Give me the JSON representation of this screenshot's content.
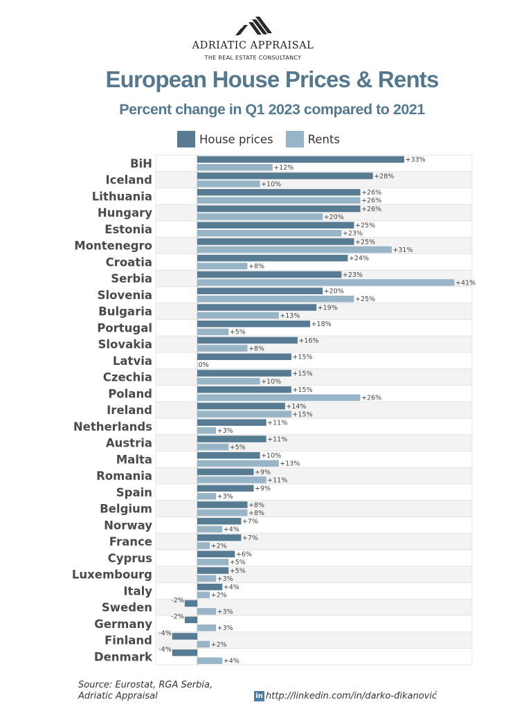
{
  "header": {
    "brand": "ADRIATIC APPRAISAL",
    "tagline": "THE REAL ESTATE CONSULTANCY",
    "logo_icon": "roof-stripes-icon"
  },
  "colors": {
    "title": "#55788f",
    "house_prices": "#567b93",
    "rents": "#97b5c7",
    "row_alt": "#f3f3f3",
    "row": "#ffffff",
    "text": "#444444"
  },
  "chart_data": {
    "type": "bar",
    "orientation": "horizontal",
    "title": "European House Prices & Rents",
    "subtitle": "Percent change in Q1 2023 compared to 2021",
    "xlabel": "",
    "ylabel": "",
    "xlim": [
      -6.6,
      44
    ],
    "grid": false,
    "legend": {
      "position": "top-center",
      "entries": [
        "House prices",
        "Rents"
      ]
    },
    "categories": [
      "BiH",
      "Iceland",
      "Lithuania",
      "Hungary",
      "Estonia",
      "Montenegro",
      "Croatia",
      "Serbia",
      "Slovenia",
      "Bulgaria",
      "Portugal",
      "Slovakia",
      "Latvia",
      "Czechia",
      "Poland",
      "Ireland",
      "Netherlands",
      "Austria",
      "Malta",
      "Romania",
      "Spain",
      "Belgium",
      "Norway",
      "France",
      "Cyprus",
      "Luxembourg",
      "Italy",
      "Sweden",
      "Germany",
      "Finland",
      "Denmark"
    ],
    "series": [
      {
        "name": "House prices",
        "values": [
          33,
          28,
          26,
          26,
          25,
          25,
          24,
          23,
          20,
          19,
          18,
          16,
          15,
          15,
          15,
          14,
          11,
          11,
          10,
          9,
          9,
          8,
          7,
          7,
          6,
          5,
          4,
          -2,
          -2,
          -4,
          -4
        ]
      },
      {
        "name": "Rents",
        "values": [
          12,
          10,
          26,
          20,
          23,
          31,
          8,
          41,
          25,
          13,
          5,
          8,
          0,
          10,
          26,
          15,
          3,
          5,
          13,
          11,
          3,
          8,
          4,
          2,
          5,
          3,
          2,
          3,
          3,
          2,
          4
        ]
      }
    ],
    "value_label_format": "signed-percent"
  },
  "footer": {
    "source": "Source: Eurostat, RGA Serbia, Adriatic Appraisal",
    "linkedin_icon": "in",
    "link": "http://linkedin.com/in/darko-đikanović"
  }
}
